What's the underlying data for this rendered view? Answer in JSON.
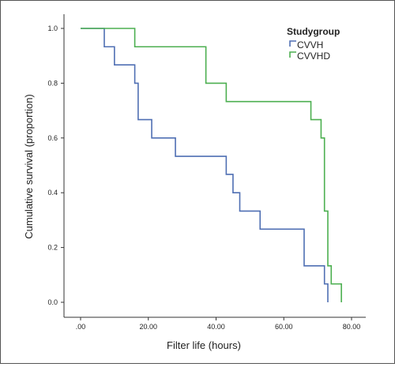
{
  "chart_data": {
    "type": "line",
    "subtype": "kaplan-meier step curve",
    "xlabel": "Filter life (hours)",
    "ylabel": "Cumulative survival (proportion)",
    "xlim": [
      0,
      80
    ],
    "ylim": [
      0,
      1.0
    ],
    "x_ticks": [
      ".00",
      "20.00",
      "40.00",
      "60.00",
      "80.00"
    ],
    "y_ticks": [
      "0.0",
      "0.2",
      "0.4",
      "0.6",
      "0.8",
      "1.0"
    ],
    "grid": false,
    "legend": {
      "title": "Studygroup",
      "placement": "top-right"
    },
    "series": [
      {
        "name": "CVVH",
        "color": "#4f6fb3",
        "steps": [
          {
            "x": 0,
            "y": 1.0
          },
          {
            "x": 7,
            "y": 0.933
          },
          {
            "x": 10,
            "y": 0.867
          },
          {
            "x": 16,
            "y": 0.8
          },
          {
            "x": 17,
            "y": 0.667
          },
          {
            "x": 21,
            "y": 0.6
          },
          {
            "x": 28,
            "y": 0.533
          },
          {
            "x": 43,
            "y": 0.467
          },
          {
            "x": 45,
            "y": 0.4
          },
          {
            "x": 47,
            "y": 0.333
          },
          {
            "x": 53,
            "y": 0.267
          },
          {
            "x": 66,
            "y": 0.133
          },
          {
            "x": 72,
            "y": 0.067
          },
          {
            "x": 73,
            "y": 0.0
          }
        ]
      },
      {
        "name": "CVVHD",
        "color": "#4caf50",
        "steps": [
          {
            "x": 0,
            "y": 1.0
          },
          {
            "x": 16,
            "y": 0.933
          },
          {
            "x": 37,
            "y": 0.8
          },
          {
            "x": 43,
            "y": 0.733
          },
          {
            "x": 68,
            "y": 0.667
          },
          {
            "x": 71,
            "y": 0.6
          },
          {
            "x": 72,
            "y": 0.333
          },
          {
            "x": 73,
            "y": 0.133
          },
          {
            "x": 74,
            "y": 0.067
          },
          {
            "x": 77,
            "y": 0.0
          }
        ]
      }
    ]
  }
}
